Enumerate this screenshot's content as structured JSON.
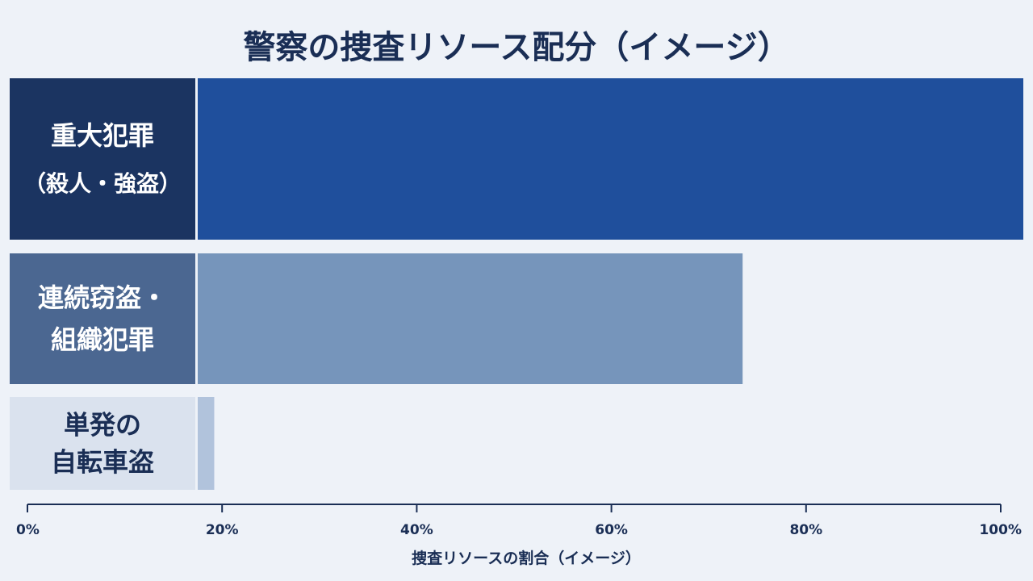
{
  "chart_data": {
    "type": "bar",
    "orientation": "horizontal",
    "title": "警察の捜査リソース配分（イメージ）",
    "xlabel": "捜査リソースの割合（イメージ）",
    "ylabel": "",
    "xlim": [
      0,
      100
    ],
    "ticks": [
      "0%",
      "20%",
      "40%",
      "60%",
      "80%",
      "100%"
    ],
    "tick_values": [
      0,
      20,
      40,
      60,
      80,
      100
    ],
    "categories": [
      {
        "lines": [
          "重大犯罪",
          "（殺人・強盗）"
        ],
        "value": 100,
        "bar_color": "#1f4f9c",
        "label_bg": "#1b3461",
        "label_color": "#ffffff"
      },
      {
        "lines": [
          "連続窃盗・",
          "組織犯罪"
        ],
        "value": 66,
        "bar_color": "#7695bb",
        "label_bg": "#4b6791",
        "label_color": "#ffffff"
      },
      {
        "lines": [
          "単発の",
          "自転車盗"
        ],
        "value": 2,
        "bar_color": "#b1c3dc",
        "label_bg": "#dae2ee",
        "label_color": "#1a2e55"
      }
    ],
    "grid": false,
    "legend": "none"
  }
}
